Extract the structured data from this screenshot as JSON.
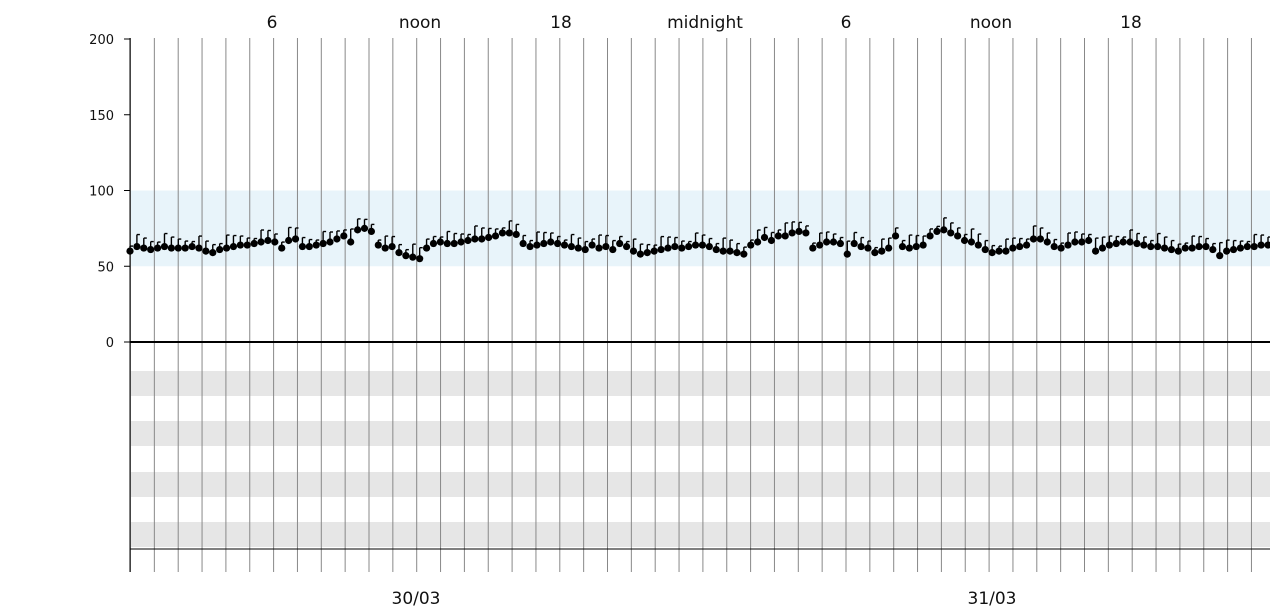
{
  "chart_data": {
    "type": "scatter",
    "title": "",
    "xlabel": "",
    "ylabel": "",
    "ylim": [
      0,
      200
    ],
    "yticks": [
      "0",
      "50",
      "100",
      "150",
      "200"
    ],
    "target_range": [
      50,
      100
    ],
    "top_axis_labels": [
      "6",
      "noon",
      "18",
      "midnight",
      "6",
      "noon",
      "18"
    ],
    "bottom_axis_labels": [
      "30/03",
      "31/03"
    ],
    "series": [
      {
        "values": [
          60,
          63,
          62,
          61,
          62,
          63,
          62,
          62,
          62,
          63,
          62,
          60,
          59,
          61,
          62,
          63,
          64,
          64,
          65,
          66,
          67,
          66,
          62,
          67,
          68,
          63,
          63,
          64,
          65,
          66,
          68,
          70,
          66,
          74,
          75,
          73,
          64,
          62,
          63,
          59,
          57,
          56,
          55,
          62,
          65,
          66,
          65,
          65,
          66,
          67,
          68,
          68,
          69,
          70,
          72,
          72,
          71,
          65,
          63,
          64,
          65,
          66,
          65,
          64,
          63,
          62,
          61,
          64,
          62,
          63,
          61,
          65,
          63,
          60,
          58,
          59,
          60,
          61,
          62,
          63,
          62,
          63,
          64,
          64,
          63,
          61,
          60,
          60,
          59,
          58,
          64,
          66,
          69,
          67,
          70,
          70,
          72,
          73,
          72,
          62,
          64,
          66,
          66,
          65,
          58,
          65,
          63,
          62,
          59,
          60,
          62,
          70,
          63,
          62,
          63,
          64,
          70,
          73,
          74,
          72,
          70,
          67,
          66,
          64,
          61,
          59,
          60,
          60,
          62,
          63,
          64,
          68,
          68,
          66,
          63,
          62,
          64,
          66,
          66,
          67,
          60,
          62,
          64,
          65,
          66,
          66,
          65,
          64,
          63,
          63,
          62,
          61,
          60,
          62,
          62,
          63,
          63,
          61,
          57,
          60,
          61,
          62,
          63,
          63,
          64,
          64
        ]
      }
    ]
  }
}
